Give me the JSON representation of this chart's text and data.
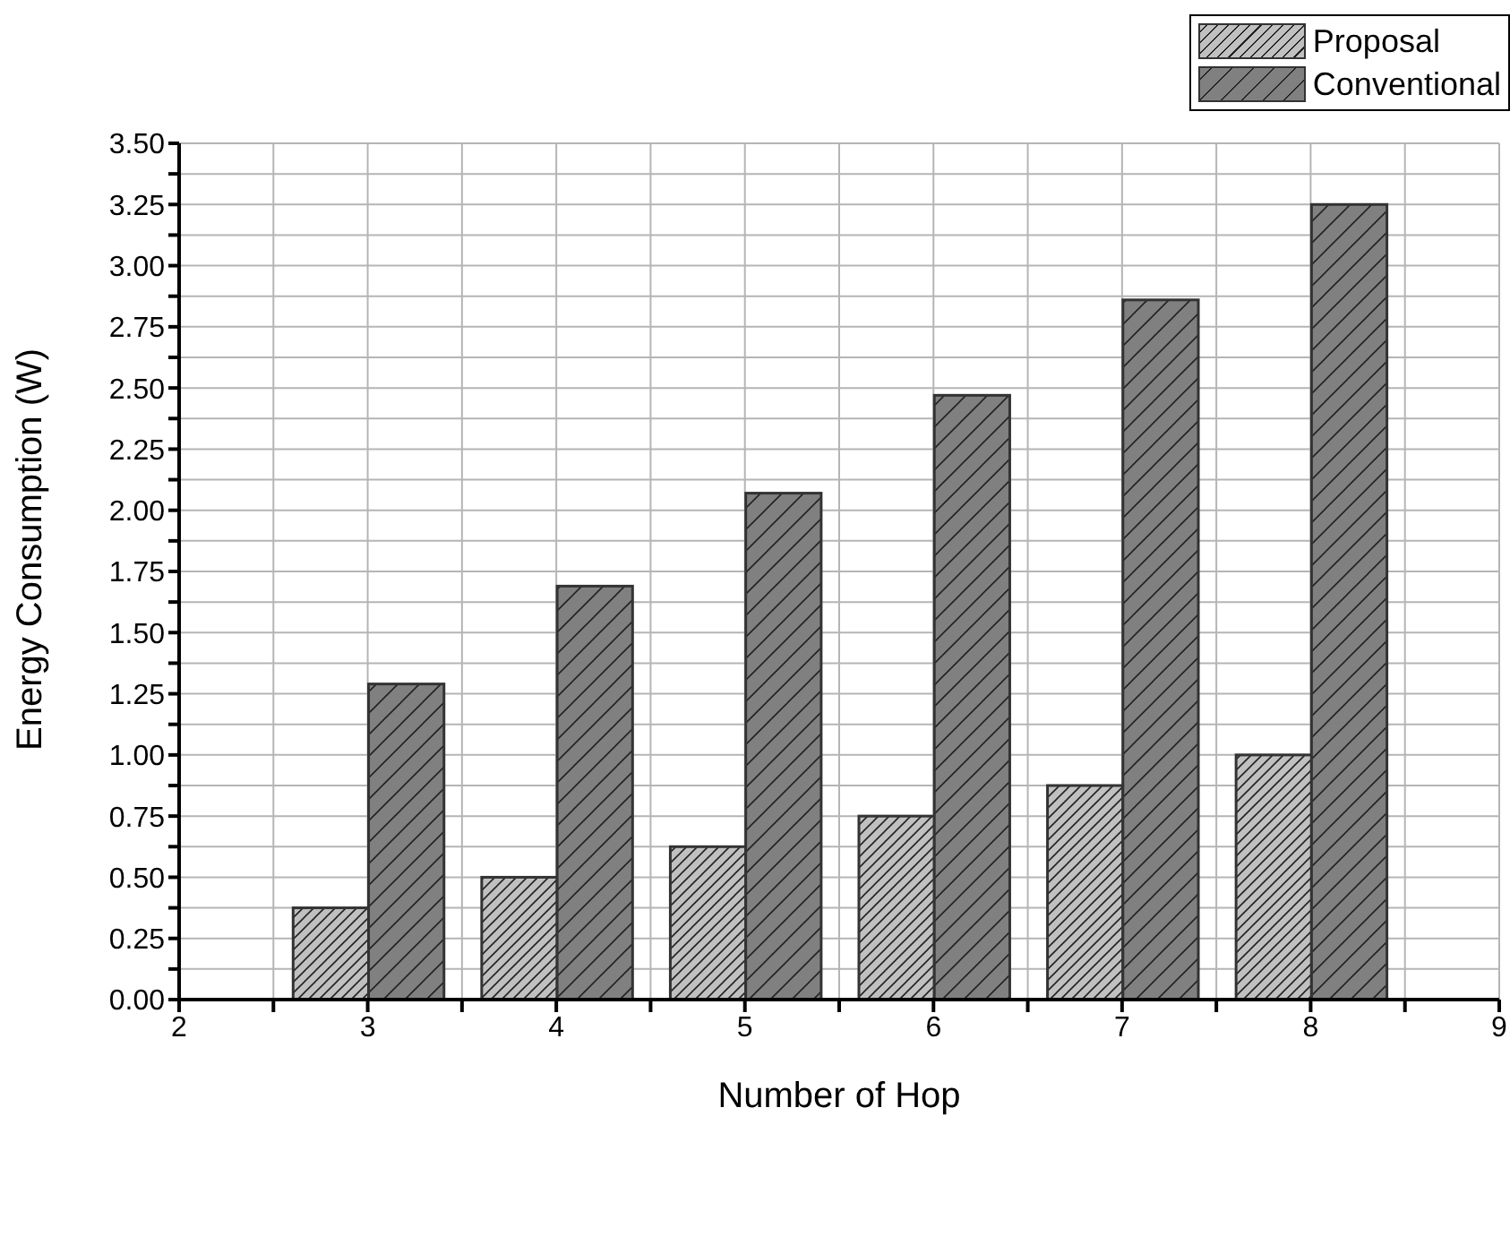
{
  "chart_data": {
    "type": "bar",
    "xlabel": "Number of Hop",
    "ylabel": "Energy Consumption (W)",
    "x": [
      3,
      4,
      5,
      6,
      7,
      8
    ],
    "series": [
      {
        "name": "Proposal",
        "color": "#c0c0c0",
        "values": [
          0.375,
          0.5,
          0.625,
          0.75,
          0.875,
          1.0
        ]
      },
      {
        "name": "Conventional",
        "color": "#808080",
        "values": [
          1.29,
          1.69,
          2.07,
          2.47,
          2.86,
          3.25
        ]
      }
    ],
    "xlim": [
      2,
      9
    ],
    "xticks": [
      2,
      {
        "value": 2.5,
        "label": null
      },
      3,
      {
        "value": 3.5,
        "label": null
      },
      4,
      {
        "value": 4.5,
        "label": null
      },
      5,
      {
        "value": 5.5,
        "label": null
      },
      6,
      {
        "value": 6.5,
        "label": null
      },
      7,
      {
        "value": 7.5,
        "label": null
      },
      8,
      {
        "value": 8.5,
        "label": null
      },
      9
    ],
    "ylim": [
      0,
      3.5
    ],
    "yticks": [
      {
        "value": 0,
        "label": "0.00"
      },
      {
        "value": 0.125,
        "label": null
      },
      {
        "value": 0.25,
        "label": "0.25"
      },
      {
        "value": 0.375,
        "label": null
      },
      {
        "value": 0.5,
        "label": "0.50"
      },
      {
        "value": 0.625,
        "label": null
      },
      {
        "value": 0.75,
        "label": "0.75"
      },
      {
        "value": 0.875,
        "label": null
      },
      {
        "value": 1,
        "label": "1.00"
      },
      {
        "value": 1.125,
        "label": null
      },
      {
        "value": 1.25,
        "label": "1.25"
      },
      {
        "value": 1.375,
        "label": null
      },
      {
        "value": 1.5,
        "label": "1.50"
      },
      {
        "value": 1.625,
        "label": null
      },
      {
        "value": 1.75,
        "label": "1.75"
      },
      {
        "value": 1.875,
        "label": null
      },
      {
        "value": 2,
        "label": "2.00"
      },
      {
        "value": 2.125,
        "label": null
      },
      {
        "value": 2.25,
        "label": "2.25"
      },
      {
        "value": 2.375,
        "label": null
      },
      {
        "value": 2.5,
        "label": "2.50"
      },
      {
        "value": 2.625,
        "label": null
      },
      {
        "value": 2.75,
        "label": "2.75"
      },
      {
        "value": 2.875,
        "label": null
      },
      {
        "value": 3,
        "label": "3.00"
      },
      {
        "value": 3.125,
        "label": null
      },
      {
        "value": 3.25,
        "label": "3.25"
      },
      {
        "value": 3.375,
        "label": null
      },
      {
        "value": 3.5,
        "label": "3.50"
      }
    ],
    "grid": true,
    "legend": "top right"
  }
}
